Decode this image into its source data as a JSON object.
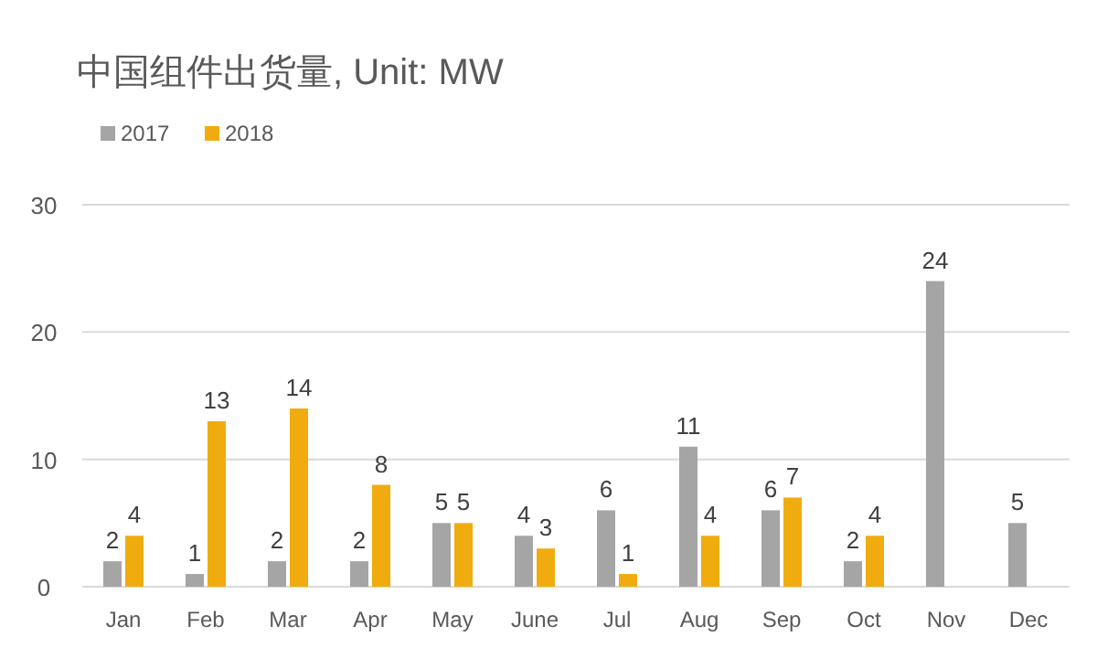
{
  "chart_data": {
    "type": "bar",
    "title": "中国组件出货量, Unit: MW",
    "categories": [
      "Jan",
      "Feb",
      "Mar",
      "Apr",
      "May",
      "June",
      "Jul",
      "Aug",
      "Sep",
      "Oct",
      "Nov",
      "Dec"
    ],
    "series": [
      {
        "name": "2017",
        "color": "#a5a5a5",
        "values": [
          2,
          1,
          2,
          2,
          5,
          4,
          6,
          11,
          6,
          2,
          24,
          5
        ]
      },
      {
        "name": "2018",
        "color": "#f0ac0e",
        "values": [
          4,
          13,
          14,
          8,
          5,
          3,
          1,
          4,
          7,
          4,
          null,
          null
        ]
      }
    ],
    "ylim": [
      0,
      30
    ],
    "yticks": [
      0,
      10,
      20,
      30
    ],
    "grid": "y",
    "legend": "top left",
    "data_labels": true
  }
}
